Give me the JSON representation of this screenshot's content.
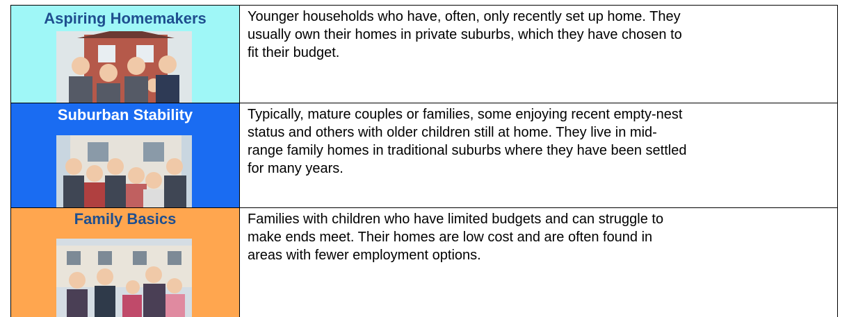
{
  "table": {
    "rows": [
      {
        "name": "Aspiring Homemakers",
        "description": [
          "Younger households who have, often, only recently set up home. They",
          "usually own their homes in private suburbs, which they have chosen to",
          "fit their budget."
        ]
      },
      {
        "name": "Suburban Stability",
        "description": [
          "Typically, mature couples or families, some enjoying recent empty-nest",
          "status and others with older children still at home. They live in mid-",
          "range family homes in traditional suburbs where they have been settled",
          "for many years."
        ]
      },
      {
        "name": "Family Basics",
        "description": [
          "Families with children who have limited budgets and can struggle to",
          "make ends meet. Their homes are low cost and are often found in",
          "areas with fewer employment options."
        ]
      }
    ]
  }
}
